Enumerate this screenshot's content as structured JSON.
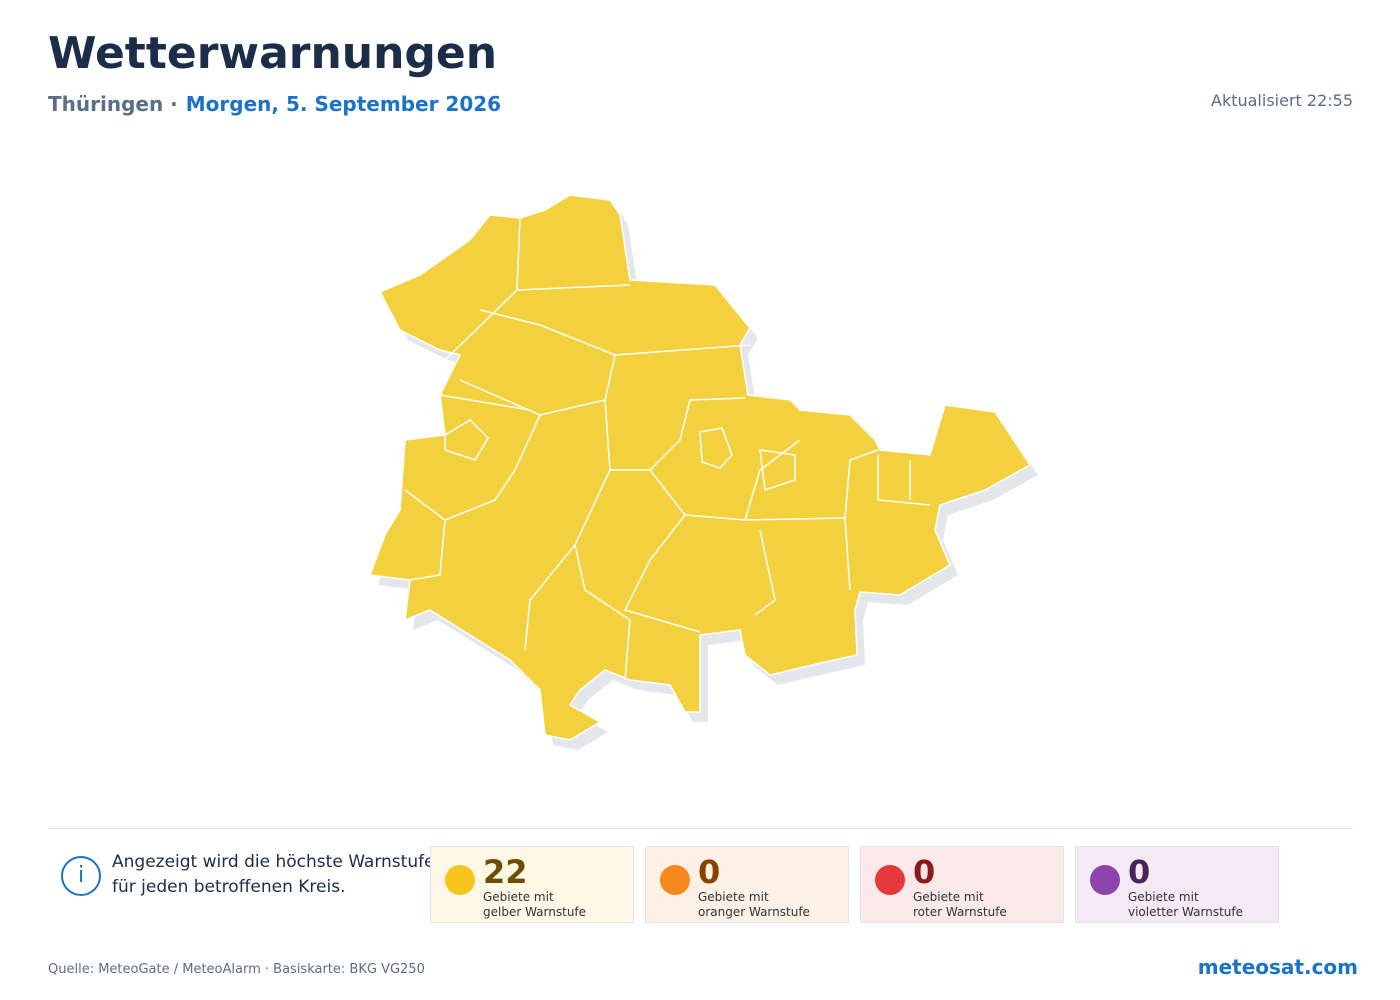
{
  "header": {
    "title": "Wetterwarnungen",
    "region": "Thüringen",
    "separator": "·",
    "date": "Morgen, 5. September 2026",
    "updated": "Aktualisiert 22:55"
  },
  "info": {
    "icon": "i",
    "line1": "Angezeigt wird die höchste Warnstufe",
    "line2": "für jeden betroffenen Kreis."
  },
  "legend": [
    {
      "count": 22,
      "line1": "Gebiete mit",
      "line2": "gelber Warnstufe",
      "color": "#f7c51e",
      "background": "#fff8e6",
      "text_color": "#6b4e00"
    },
    {
      "count": 0,
      "line1": "Gebiete mit",
      "line2": "oranger Warnstufe",
      "color": "#f5891f",
      "background": "#fdf0e6",
      "text_color": "#8a4200"
    },
    {
      "count": 0,
      "line1": "Gebiete mit",
      "line2": "roter Warnstufe",
      "color": "#e5383b",
      "background": "#fbe9ea",
      "text_color": "#8b1a1a"
    },
    {
      "count": 0,
      "line1": "Gebiete mit",
      "line2": "violetter Warnstufe",
      "color": "#8e44ad",
      "background": "#f3eaf6",
      "text_color": "#4a235a"
    }
  ],
  "footer": {
    "source": "Quelle: MeteoGate / MeteoAlarm · Basiskarte: BKG VG250",
    "brand": "meteosat.com"
  }
}
